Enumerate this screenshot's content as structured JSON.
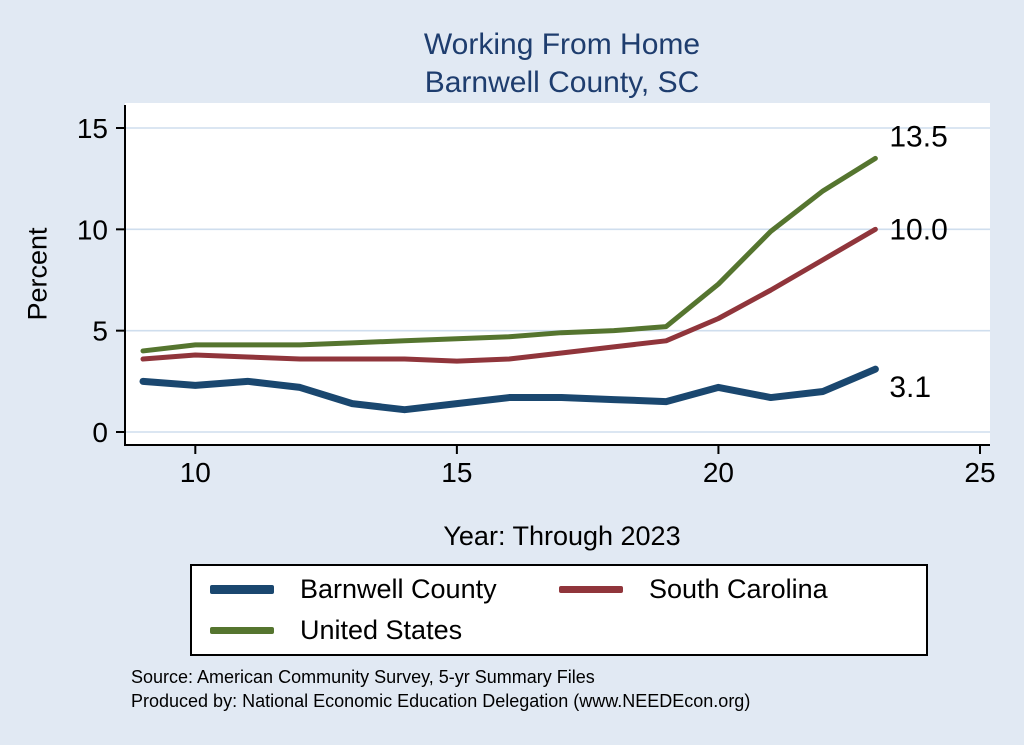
{
  "chart_data": {
    "type": "line",
    "title": "Working From Home",
    "subtitle": "Barnwell County, SC",
    "ylabel": "Percent",
    "xlabel": "Year: Through 2023",
    "xlim": [
      9,
      25
    ],
    "ylim": [
      0,
      15
    ],
    "xticks": [
      "10",
      "15",
      "20",
      "25"
    ],
    "yticks": [
      "0",
      "5",
      "10",
      "15"
    ],
    "grid": true,
    "legend_position": "bottom",
    "x": [
      9,
      10,
      11,
      12,
      13,
      14,
      15,
      16,
      17,
      18,
      19,
      20,
      21,
      22,
      23
    ],
    "series": [
      {
        "name": "Barnwell County",
        "color": "#1a476f",
        "line_width": 7,
        "end_label": "3.1",
        "end_label_dy": 18,
        "values": [
          2.5,
          2.3,
          2.5,
          2.2,
          1.4,
          1.1,
          1.4,
          1.7,
          1.7,
          1.6,
          1.5,
          2.2,
          1.7,
          2.0,
          3.1
        ]
      },
      {
        "name": "South Carolina",
        "color": "#90353b",
        "line_width": 5,
        "end_label": "10.0",
        "end_label_dy": 0,
        "values": [
          3.6,
          3.8,
          3.7,
          3.6,
          3.6,
          3.6,
          3.5,
          3.6,
          3.9,
          4.2,
          4.5,
          5.6,
          7.0,
          8.5,
          10.0
        ]
      },
      {
        "name": "United States",
        "color": "#55752f",
        "line_width": 5,
        "end_label": "13.5",
        "end_label_dy": -22,
        "values": [
          4.0,
          4.3,
          4.3,
          4.3,
          4.4,
          4.5,
          4.6,
          4.7,
          4.9,
          5.0,
          5.2,
          7.3,
          9.9,
          11.9,
          13.5
        ]
      }
    ]
  },
  "theme": {
    "background": "#e1e9f3",
    "plot_background": "#ffffff",
    "grid_color": "#cfdeee",
    "axis_color": "#000000",
    "title_color": "#1e3d6e"
  },
  "footer": {
    "source": "Source: American Community Survey, 5-yr Summary Files",
    "produced_by": "Produced by: National Economic Education Delegation (www.NEEDEcon.org)"
  }
}
